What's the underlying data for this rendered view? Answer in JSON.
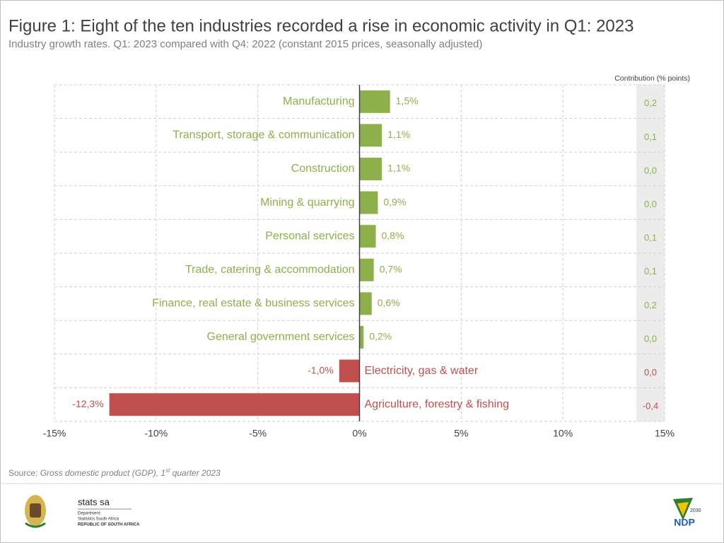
{
  "chart_data": {
    "type": "bar",
    "orientation": "horizontal",
    "title": "Figure 1: Eight of the ten industries recorded a rise in economic activity in Q1: 2023",
    "subtitle": "Industry growth rates. Q1: 2023 compared with Q4: 2022 (constant 2015 prices, seasonally adjusted)",
    "categories": [
      "Manufacturing",
      "Transport, storage & communication",
      "Construction",
      "Mining & quarrying",
      "Personal services",
      "Trade, catering & accommodation",
      "Finance, real estate & business services",
      "General government services",
      "Electricity, gas & water",
      "Agriculture, forestry & fishing"
    ],
    "values": [
      1.5,
      1.1,
      1.1,
      0.9,
      0.8,
      0.7,
      0.6,
      0.2,
      -1.0,
      -12.3
    ],
    "value_labels": [
      "1,5%",
      "1,1%",
      "1,1%",
      "0,9%",
      "0,8%",
      "0,7%",
      "0,6%",
      "0,2%",
      "-1,0%",
      "-12,3%"
    ],
    "positive_color": "#8db04a",
    "negative_color": "#c0504d",
    "xlim": [
      -15,
      15
    ],
    "xticks": [
      {
        "value": -15,
        "label": "-15%"
      },
      {
        "value": -10,
        "label": "-10%"
      },
      {
        "value": -5,
        "label": "-5%"
      },
      {
        "value": 0,
        "label": "0%"
      },
      {
        "value": 5,
        "label": "5%"
      },
      {
        "value": 10,
        "label": "10%"
      },
      {
        "value": 15,
        "label": "15%"
      }
    ],
    "grid": true,
    "contribution_title": "Contribution (% points)",
    "contributions": [
      {
        "value": 0.2,
        "label": "0,2"
      },
      {
        "value": 0.1,
        "label": "0,1"
      },
      {
        "value": 0.0,
        "label": "0,0"
      },
      {
        "value": 0.0,
        "label": "0,0"
      },
      {
        "value": 0.1,
        "label": "0,1"
      },
      {
        "value": 0.1,
        "label": "0,1"
      },
      {
        "value": 0.2,
        "label": "0,2"
      },
      {
        "value": 0.0,
        "label": "0,0"
      },
      {
        "value": 0.0,
        "label": "0,0"
      },
      {
        "value": -0.4,
        "label": "-0,4"
      }
    ]
  },
  "footer": {
    "source_label": "Source:",
    "source_text": "Gross domestic product (GDP), 1",
    "source_sup": "st",
    "source_rest": "quarter 2023",
    "org_name": "stats sa",
    "dept_line": "Department:",
    "dept_name": "Statistics South Africa",
    "country": "REPUBLIC OF SOUTH AFRICA",
    "ndp_year": "2030",
    "ndp_text": "NDP"
  }
}
